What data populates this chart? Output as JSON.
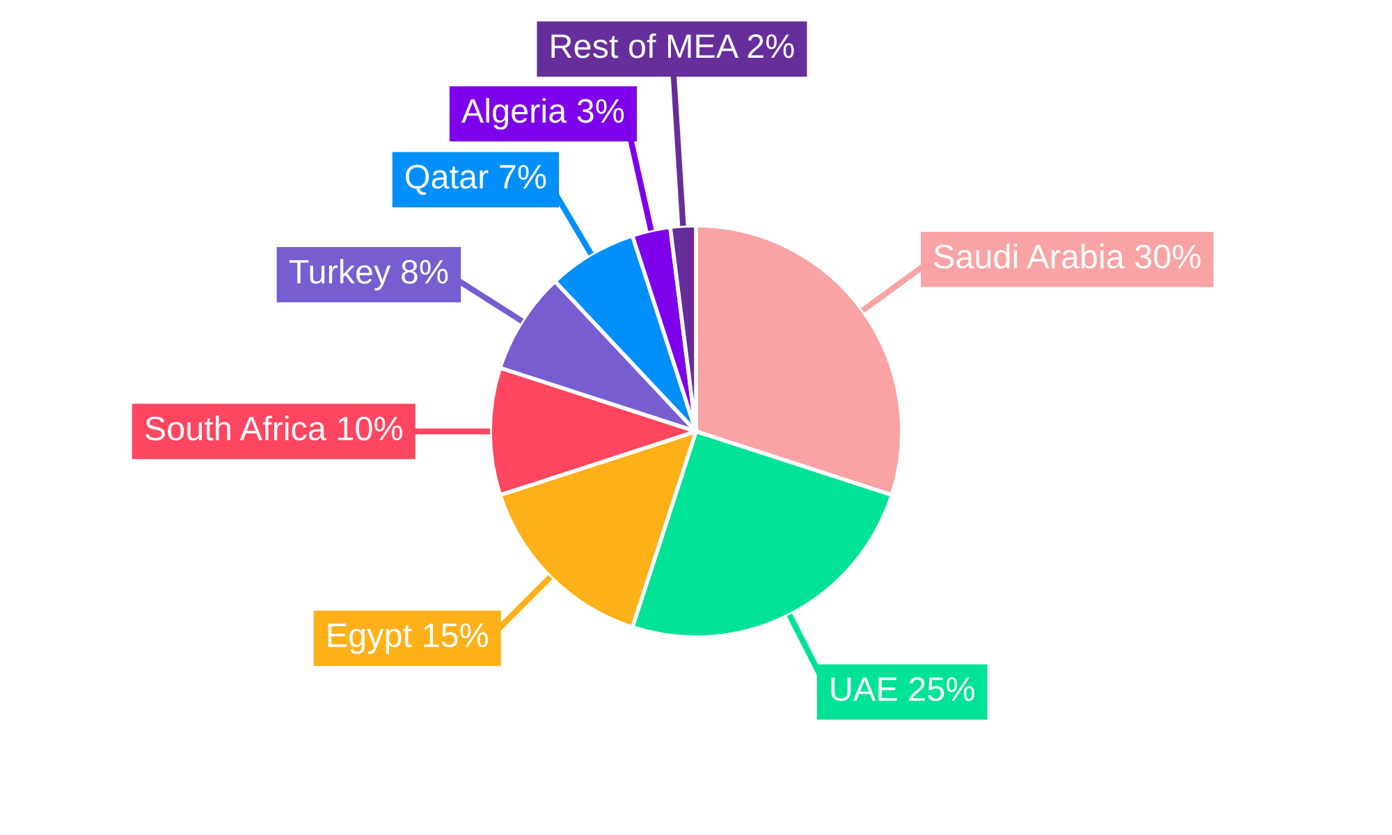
{
  "chart_data": {
    "type": "pie",
    "categories": [
      "Saudi Arabia",
      "UAE",
      "Egypt",
      "South Africa",
      "Turkey",
      "Qatar",
      "Algeria",
      "Rest of MEA"
    ],
    "values": [
      30,
      25,
      15,
      10,
      8,
      7,
      3,
      2
    ],
    "value_labels": [
      "30%",
      "25%",
      "15%",
      "10%",
      "8%",
      "7%",
      "3%",
      "2%"
    ],
    "colors": [
      "#f9a3a4",
      "#00e396",
      "#feb019",
      "#ff4560",
      "#775dd0",
      "#008ffb",
      "#7d02eb",
      "#662e9b"
    ]
  }
}
